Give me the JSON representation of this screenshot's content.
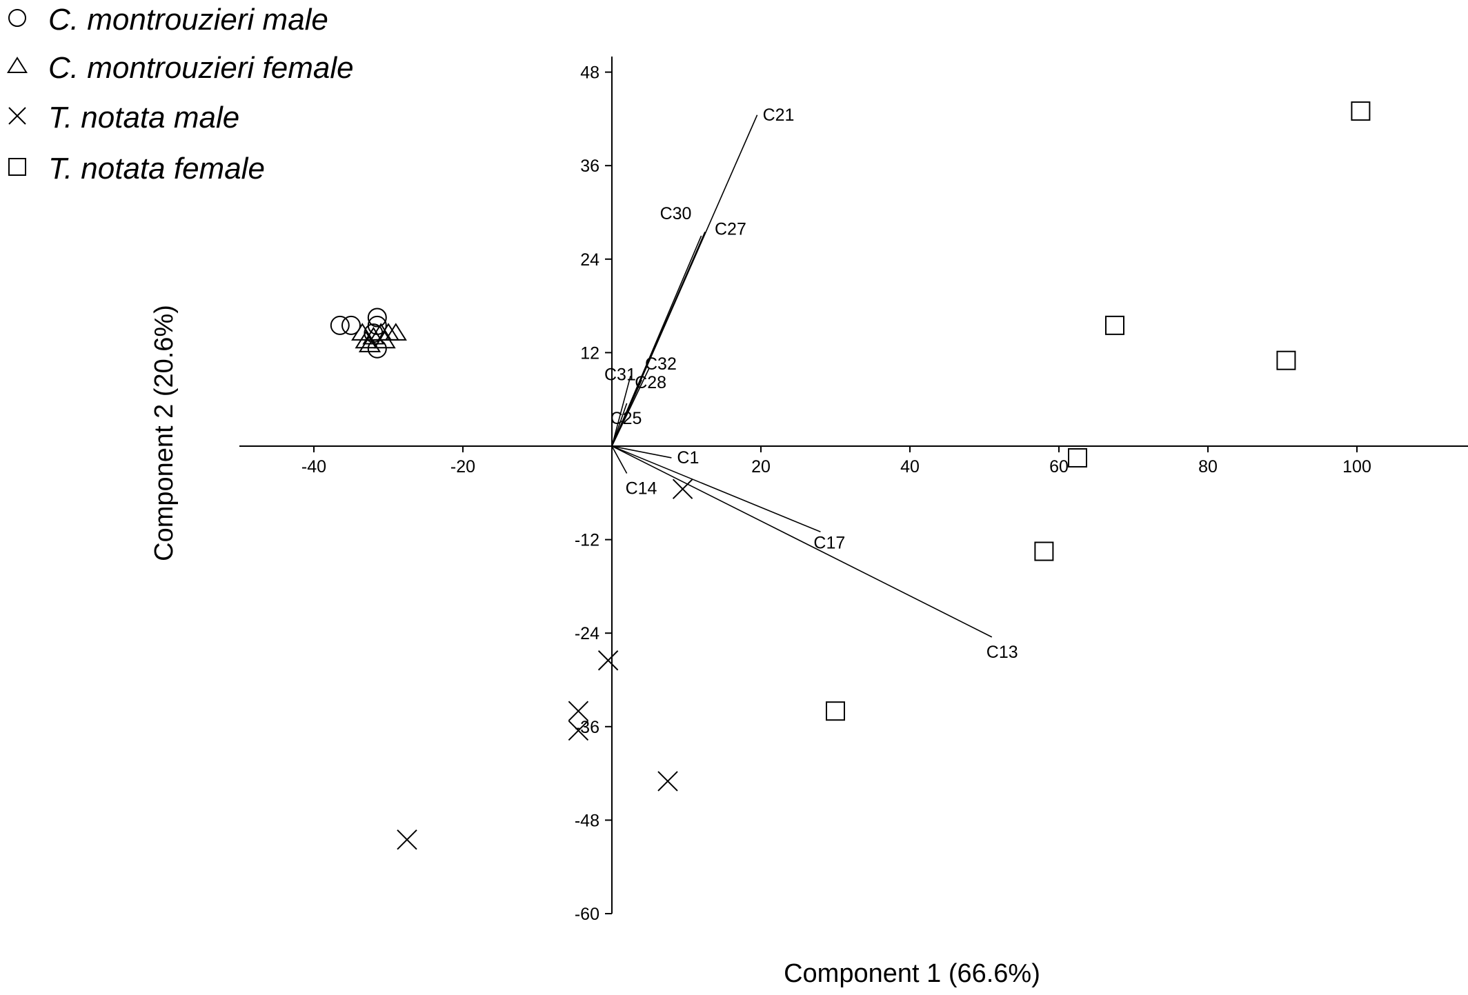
{
  "chart_data": {
    "type": "scatter",
    "title": "",
    "xlabel": "Component 1 (66.6%)",
    "ylabel": "Component 2 (20.6%)",
    "xlim": [
      -50,
      115
    ],
    "ylim": [
      -60,
      50
    ],
    "xticks": [
      -40,
      -20,
      20,
      40,
      60,
      80,
      100
    ],
    "yticks": [
      48,
      36,
      24,
      12,
      -12,
      -24,
      -36,
      -48,
      -60
    ],
    "grid": false,
    "legend_position": "top-left",
    "series": [
      {
        "name": "C. montrouzieri male",
        "marker": "circle",
        "points": [
          [
            -36.5,
            15.5
          ],
          [
            -35.0,
            15.5
          ],
          [
            -31.5,
            16.5
          ],
          [
            -31.5,
            15.5
          ],
          [
            -32.0,
            14.5
          ],
          [
            -31.5,
            12.5
          ]
        ]
      },
      {
        "name": "C. montrouzieri female",
        "marker": "triangle",
        "points": [
          [
            -33.5,
            14.5
          ],
          [
            -32.0,
            14.0
          ],
          [
            -31.0,
            14.5
          ],
          [
            -30.0,
            14.5
          ],
          [
            -29.0,
            14.5
          ],
          [
            -30.5,
            13.5
          ],
          [
            -33.0,
            13.5
          ],
          [
            -32.5,
            13.0
          ]
        ]
      },
      {
        "name": "T. notata male",
        "marker": "x",
        "points": [
          [
            9.5,
            -5.5
          ],
          [
            -0.5,
            -27.5
          ],
          [
            -4.5,
            -34.0
          ],
          [
            -4.5,
            -36.5
          ],
          [
            7.5,
            -43.0
          ],
          [
            -27.5,
            -50.5
          ]
        ]
      },
      {
        "name": "T. notata female",
        "marker": "square",
        "points": [
          [
            100.5,
            43.0
          ],
          [
            67.5,
            15.5
          ],
          [
            90.5,
            11.0
          ],
          [
            62.5,
            -1.5
          ],
          [
            58.0,
            -13.5
          ],
          [
            30.0,
            -34.0
          ]
        ]
      }
    ],
    "vectors": [
      {
        "label": "C21",
        "x": 19.5,
        "y": 42.5
      },
      {
        "label": "C30",
        "x": 12.0,
        "y": 27.0
      },
      {
        "label": "C27",
        "x": 12.5,
        "y": 27.5
      },
      {
        "label": "C31",
        "x": 2.5,
        "y": 9.0
      },
      {
        "label": "C32",
        "x": 5.0,
        "y": 10.0
      },
      {
        "label": "C28",
        "x": 4.0,
        "y": 8.5
      },
      {
        "label": "C25",
        "x": 2.0,
        "y": 5.5
      },
      {
        "label": "C1",
        "x": 8.0,
        "y": -1.5
      },
      {
        "label": "C14",
        "x": 2.0,
        "y": -3.5
      },
      {
        "label": "C17",
        "x": 28.0,
        "y": -11.0
      },
      {
        "label": "C13",
        "x": 51.0,
        "y": -24.5
      }
    ]
  },
  "colors": {
    "ink": "#000000",
    "background": "#ffffff"
  }
}
